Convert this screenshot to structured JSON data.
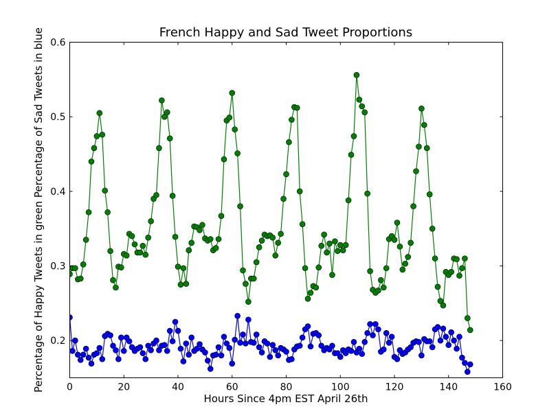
{
  "chart_data": {
    "type": "line",
    "title": "French Happy and Sad Tweet Proportions",
    "xlabel": "Hours Since 4pm EST April 26th",
    "ylabel": "Percentage of Happy Tweets in green Percentage of Sad Tweets in blue",
    "xlim": [
      0,
      160
    ],
    "ylim": [
      0.15,
      0.6
    ],
    "xticks": [
      "0",
      "20",
      "40",
      "60",
      "80",
      "100",
      "120",
      "140",
      "160"
    ],
    "yticks": [
      "0.2",
      "0.3",
      "0.4",
      "0.5",
      "0.6"
    ],
    "grid": false,
    "legend": "none",
    "series": [
      {
        "color": "#008000",
        "marker": "circle",
        "x": [
          0,
          1,
          2,
          3,
          4,
          5,
          6,
          7,
          8,
          9,
          10,
          11,
          12,
          13,
          14,
          15,
          16,
          17,
          18,
          19,
          20,
          21,
          22,
          23,
          24,
          25,
          26,
          27,
          28,
          29,
          30,
          31,
          32,
          33,
          34,
          35,
          36,
          37,
          38,
          39,
          40,
          41,
          42,
          43,
          44,
          45,
          46,
          47,
          48,
          49,
          50,
          51,
          52,
          53,
          54,
          55,
          56,
          57,
          58,
          59,
          60,
          61,
          62,
          63,
          64,
          65,
          66,
          67,
          68,
          69,
          70,
          71,
          72,
          73,
          74,
          75,
          76,
          77,
          78,
          79,
          80,
          81,
          82,
          83,
          84,
          85,
          86,
          87,
          88,
          89,
          90,
          91,
          92,
          93,
          94,
          95,
          96,
          97,
          98,
          99,
          100,
          101,
          102,
          103,
          104,
          105,
          106,
          107,
          108,
          109,
          110,
          111,
          112,
          113,
          114,
          115,
          116,
          117,
          118,
          119,
          120,
          121,
          122,
          123,
          124,
          125,
          126,
          127,
          128,
          129,
          130,
          131,
          132,
          133,
          134,
          135,
          136,
          137,
          138,
          139,
          140,
          141,
          142,
          143,
          144,
          145,
          146,
          147,
          148
        ],
        "values": [
          0.289,
          0.297,
          0.297,
          0.282,
          0.283,
          0.302,
          0.335,
          0.372,
          0.44,
          0.458,
          0.474,
          0.505,
          0.476,
          0.401,
          0.372,
          0.32,
          0.281,
          0.271,
          0.299,
          0.298,
          0.316,
          0.314,
          0.343,
          0.34,
          0.329,
          0.318,
          0.318,
          0.327,
          0.315,
          0.338,
          0.36,
          0.39,
          0.395,
          0.458,
          0.522,
          0.5,
          0.506,
          0.471,
          0.394,
          0.339,
          0.299,
          0.275,
          0.297,
          0.276,
          0.321,
          0.331,
          0.353,
          0.352,
          0.348,
          0.355,
          0.337,
          0.334,
          0.336,
          0.321,
          0.324,
          0.336,
          0.367,
          0.443,
          0.495,
          0.499,
          0.532,
          0.483,
          0.451,
          0.38,
          0.294,
          0.276,
          0.252,
          0.283,
          0.283,
          0.305,
          0.325,
          0.334,
          0.342,
          0.34,
          0.341,
          0.338,
          0.314,
          0.331,
          0.343,
          0.39,
          0.423,
          0.466,
          0.496,
          0.513,
          0.512,
          0.4,
          0.356,
          0.297,
          0.256,
          0.264,
          0.273,
          0.271,
          0.298,
          0.327,
          0.342,
          0.318,
          0.33,
          0.288,
          0.333,
          0.32,
          0.328,
          0.321,
          0.328,
          0.388,
          0.449,
          0.474,
          0.556,
          0.523,
          0.514,
          0.506,
          0.397,
          0.293,
          0.268,
          0.264,
          0.267,
          0.281,
          0.271,
          0.297,
          0.336,
          0.34,
          0.335,
          0.358,
          0.326,
          0.295,
          0.303,
          0.312,
          0.331,
          0.38,
          0.427,
          0.46,
          0.511,
          0.489,
          0.458,
          0.396,
          0.35,
          0.31,
          0.272,
          0.253,
          0.247,
          0.292,
          0.288,
          0.292,
          0.31,
          0.309,
          0.287,
          0.297,
          0.31,
          0.23,
          0.214
        ]
      },
      {
        "color": "#0000ff",
        "marker": "circle",
        "x": [
          0,
          1,
          2,
          3,
          4,
          5,
          6,
          7,
          8,
          9,
          10,
          11,
          12,
          13,
          14,
          15,
          16,
          17,
          18,
          19,
          20,
          21,
          22,
          23,
          24,
          25,
          26,
          27,
          28,
          29,
          30,
          31,
          32,
          33,
          34,
          35,
          36,
          37,
          38,
          39,
          40,
          41,
          42,
          43,
          44,
          45,
          46,
          47,
          48,
          49,
          50,
          51,
          52,
          53,
          54,
          55,
          56,
          57,
          58,
          59,
          60,
          61,
          62,
          63,
          64,
          65,
          66,
          67,
          68,
          69,
          70,
          71,
          72,
          73,
          74,
          75,
          76,
          77,
          78,
          79,
          80,
          81,
          82,
          83,
          84,
          85,
          86,
          87,
          88,
          89,
          90,
          91,
          92,
          93,
          94,
          95,
          96,
          97,
          98,
          99,
          100,
          101,
          102,
          103,
          104,
          105,
          106,
          107,
          108,
          109,
          110,
          111,
          112,
          113,
          114,
          115,
          116,
          117,
          118,
          119,
          120,
          121,
          122,
          123,
          124,
          125,
          126,
          127,
          128,
          129,
          130,
          131,
          132,
          133,
          134,
          135,
          136,
          137,
          138,
          139,
          140,
          141,
          142,
          143,
          144,
          145,
          146,
          147,
          148
        ],
        "values": [
          0.231,
          0.186,
          0.2,
          0.181,
          0.174,
          0.181,
          0.189,
          0.177,
          0.169,
          0.181,
          0.183,
          0.19,
          0.175,
          0.206,
          0.209,
          0.207,
          0.193,
          0.187,
          0.175,
          0.204,
          0.186,
          0.204,
          0.199,
          0.191,
          0.186,
          0.189,
          0.191,
          0.183,
          0.175,
          0.193,
          0.187,
          0.196,
          0.2,
          0.187,
          0.193,
          0.194,
          0.186,
          0.213,
          0.199,
          0.225,
          0.213,
          0.189,
          0.172,
          0.196,
          0.181,
          0.204,
          0.186,
          0.189,
          0.195,
          0.188,
          0.184,
          0.173,
          0.162,
          0.18,
          0.181,
          0.191,
          0.18,
          0.205,
          0.196,
          0.19,
          0.169,
          0.201,
          0.233,
          0.197,
          0.208,
          0.196,
          0.228,
          0.198,
          0.197,
          0.208,
          0.191,
          0.184,
          0.199,
          0.196,
          0.178,
          0.194,
          0.187,
          0.18,
          0.19,
          0.188,
          0.185,
          0.174,
          0.175,
          0.188,
          0.192,
          0.193,
          0.204,
          0.215,
          0.219,
          0.192,
          0.209,
          0.21,
          0.207,
          0.193,
          0.187,
          0.19,
          0.188,
          0.193,
          0.183,
          0.183,
          0.178,
          0.187,
          0.183,
          0.188,
          0.186,
          0.198,
          0.184,
          0.189,
          0.182,
          0.198,
          0.21,
          0.222,
          0.207,
          0.222,
          0.215,
          0.185,
          0.188,
          0.21,
          0.197,
          0.205,
          0.178,
          0.175,
          0.187,
          0.182,
          0.184,
          0.188,
          0.191,
          0.197,
          0.199,
          0.198,
          0.18,
          0.202,
          0.199,
          0.199,
          0.191,
          0.215,
          0.218,
          0.2,
          0.216,
          0.205,
          0.194,
          0.211,
          0.2,
          0.189,
          0.205,
          0.177,
          0.17,
          0.158,
          0.168
        ]
      }
    ]
  }
}
